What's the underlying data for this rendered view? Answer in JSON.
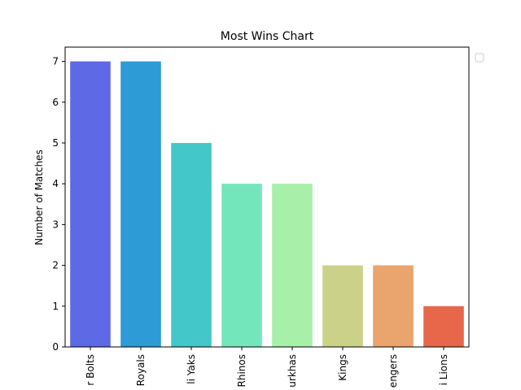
{
  "chart_data": {
    "type": "bar",
    "title": "Most Wins Chart",
    "xlabel": "",
    "ylabel": "Number of Matches",
    "categories": [
      "r Bolts",
      "Royals",
      "li Yaks",
      "Rhinos",
      "urkhas",
      "Kings",
      "engers",
      "i Lions"
    ],
    "values": [
      7,
      7,
      5,
      4,
      4,
      2,
      2,
      1
    ],
    "colors": [
      "#5e69e6",
      "#2c9bd6",
      "#43c7c8",
      "#74e6bc",
      "#a8efaa",
      "#cbd188",
      "#eaa46d",
      "#e8674a"
    ],
    "ylim": [
      0,
      7.35
    ],
    "yticks": [
      "0",
      "1",
      "2",
      "3",
      "4",
      "5",
      "6",
      "7"
    ],
    "grid": false,
    "legend": {
      "placement": "top-right outside",
      "entries": []
    }
  }
}
